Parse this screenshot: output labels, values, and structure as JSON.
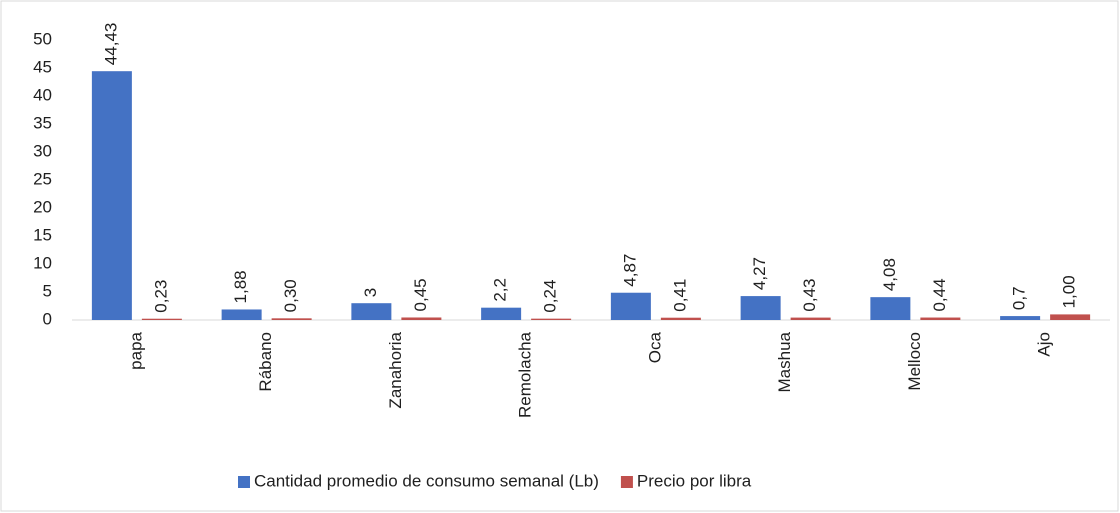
{
  "chart_data": {
    "type": "bar",
    "categories": [
      "papa",
      "Rábano",
      "Zanahoria",
      "Remolacha",
      "Oca",
      "Mashua",
      "Melloco",
      "Ajo"
    ],
    "series": [
      {
        "name": "Cantidad promedio de consumo semanal (Lb)",
        "color": "#4472c4",
        "values": [
          44.43,
          1.88,
          3,
          2.2,
          4.87,
          4.27,
          4.08,
          0.7
        ],
        "value_labels": [
          "44,43",
          "1,88",
          "3",
          "2,2",
          "4,87",
          "4,27",
          "4,08",
          "0,7"
        ]
      },
      {
        "name": "Precio por libra",
        "color": "#c0504d",
        "values": [
          0.23,
          0.3,
          0.45,
          0.24,
          0.41,
          0.43,
          0.44,
          1.0
        ],
        "value_labels": [
          "0,23",
          "0,30",
          "0,45",
          "0,24",
          "0,41",
          "0,43",
          "0,44",
          "1,00"
        ]
      }
    ],
    "ylim": [
      0,
      50
    ],
    "yticks": [
      0,
      5,
      10,
      15,
      20,
      25,
      30,
      35,
      40,
      45,
      50
    ],
    "grid": false,
    "legend": "bottom"
  }
}
